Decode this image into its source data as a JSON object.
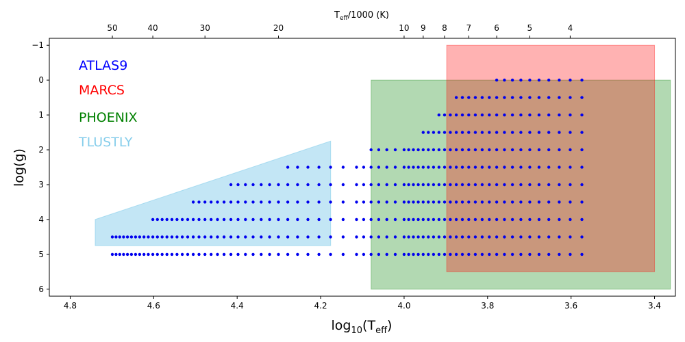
{
  "chart_data": {
    "type": "scatter",
    "xlabel_main": "log",
    "xlabel_sub": "10",
    "xlabel_paren": "(T",
    "xlabel_paren_sub": "eff",
    "xlabel_close": ")",
    "ylabel": "log(g)",
    "top_label_main": "T",
    "top_label_sub": "eff",
    "top_label_rest": "/1000 (K)",
    "xlim": [
      4.85,
      3.35
    ],
    "ylim": [
      6.2,
      -1.2
    ],
    "x_ticks": [
      4.8,
      4.6,
      4.4,
      4.2,
      4.0,
      3.8,
      3.6,
      3.4
    ],
    "x_tick_labels": [
      "4.8",
      "4.6",
      "4.4",
      "4.2",
      "4.0",
      "3.8",
      "3.6",
      "3.4"
    ],
    "y_ticks": [
      -1,
      0,
      1,
      2,
      3,
      4,
      5,
      6
    ],
    "y_tick_labels": [
      "−1",
      "0",
      "1",
      "2",
      "3",
      "4",
      "5",
      "6"
    ],
    "top_ticks": [
      50,
      40,
      30,
      20,
      10,
      9,
      8,
      7,
      6,
      5,
      4
    ],
    "top_tick_labels": [
      "50",
      "40",
      "30",
      "20",
      "10",
      "9",
      "8",
      "7",
      "6",
      "5",
      "4"
    ],
    "colors": {
      "atlas9": "#0000ff",
      "marcs": "#ff0000",
      "phoenix": "#008000",
      "tlustly": "#87ceeb",
      "points": "#0000ee"
    },
    "legend": [
      {
        "name": "ATLAS9",
        "color": "#0000ff"
      },
      {
        "name": "MARCS",
        "color": "#ff0000"
      },
      {
        "name": "PHOENIX",
        "color": "#008000"
      },
      {
        "name": "TLUSTLY",
        "color": "#87ceeb"
      }
    ],
    "regions": {
      "marcs": {
        "x": [
          3.4,
          3.898
        ],
        "y": [
          -1,
          5.5
        ]
      },
      "phoenix": {
        "x": [
          3.362,
          4.079
        ],
        "y": [
          0,
          6
        ]
      },
      "tlustly": {
        "points": [
          [
            4.74,
            4.0
          ],
          [
            4.176,
            1.75
          ],
          [
            4.176,
            4.75
          ],
          [
            4.74,
            4.75
          ]
        ]
      }
    },
    "grid_rows": [
      {
        "logg": 0.0,
        "x_from": 3.778,
        "x_to": 3.574
      },
      {
        "logg": 0.5,
        "x_from": 3.875,
        "x_to": 3.574
      },
      {
        "logg": 1.0,
        "x_from": 3.914,
        "x_to": 3.574
      },
      {
        "logg": 1.5,
        "x_from": 3.954,
        "x_to": 3.574
      },
      {
        "logg": 2.0,
        "x_from": 4.079,
        "x_to": 3.574
      },
      {
        "logg": 2.5,
        "x_from": 4.279,
        "x_to": 3.574
      },
      {
        "logg": 3.0,
        "x_from": 4.415,
        "x_to": 3.574
      },
      {
        "logg": 3.5,
        "x_from": 4.505,
        "x_to": 3.574
      },
      {
        "logg": 4.0,
        "x_from": 4.602,
        "x_to": 3.574
      },
      {
        "logg": 4.5,
        "x_from": 4.699,
        "x_to": 3.574
      },
      {
        "logg": 5.0,
        "x_from": 4.699,
        "x_to": 3.574
      }
    ]
  }
}
